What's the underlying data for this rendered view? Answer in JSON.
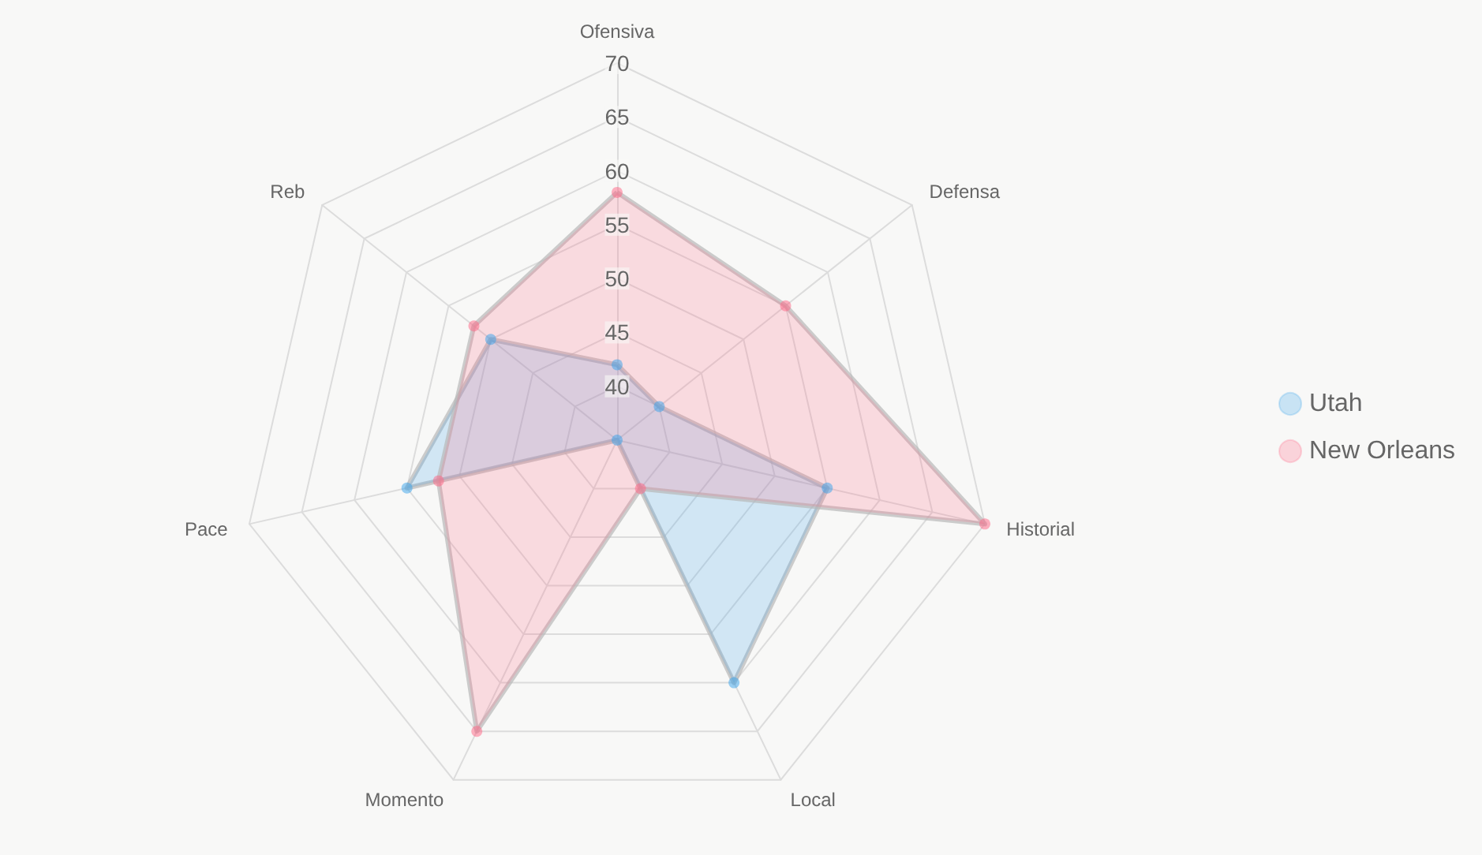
{
  "chart_data": {
    "type": "radar",
    "categories": [
      "Ofensiva",
      "Defensa",
      "Historial",
      "Local",
      "Momento",
      "Pace",
      "Reb"
    ],
    "ylim": [
      35,
      70
    ],
    "yticks": [
      40,
      45,
      50,
      55,
      60,
      65,
      70
    ],
    "legend": "right",
    "grid": true,
    "marker": "circle",
    "series": [
      {
        "name": "Utah",
        "color": "#36a2eb",
        "values": [
          42,
          40,
          55,
          60,
          35,
          55,
          50
        ]
      },
      {
        "name": "New Orleans",
        "color": "#ff6384",
        "values": [
          58,
          55,
          70,
          40,
          65,
          52,
          52
        ]
      }
    ]
  }
}
